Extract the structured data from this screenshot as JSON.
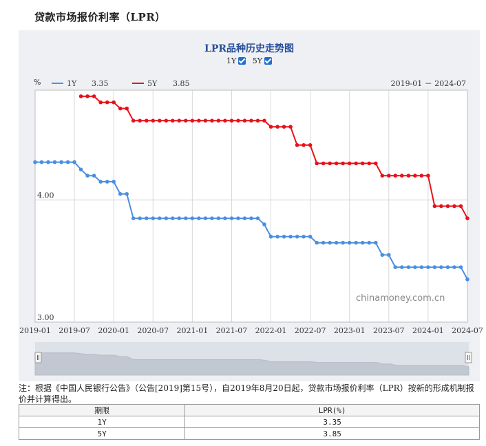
{
  "page_title": "贷款市场报价利率（LPR）",
  "toggles": [
    {
      "label": "1Y",
      "checked": true
    },
    {
      "label": "5Y",
      "checked": true
    }
  ],
  "note": "注：根据《中国人民银行公告》（公告[2019]第15号），自2019年8月20日起，贷款市场报价利率（LPR）按新的形成机制报价并计算得出。",
  "table": {
    "headers": [
      "期限",
      "LPR(%)"
    ],
    "rows": [
      [
        "1Y",
        "3.35"
      ],
      [
        "5Y",
        "3.85"
      ]
    ]
  },
  "colors": {
    "series_1y": "#4a8fe0",
    "series_5y": "#e8101a",
    "title": "#2a4f9a",
    "panel_bg": "#eef0f4"
  },
  "watermark": "chinamoney.com.cn",
  "chart_data": {
    "type": "line",
    "title": "LPR品种历史走势图",
    "unit_label": "%",
    "date_range": "2019-01 － 2024-07",
    "x_tick_labels": [
      "2019-01",
      "2019-07",
      "2020-01",
      "2020-07",
      "2021-01",
      "2021-07",
      "2022-01",
      "2022-07",
      "2023-01",
      "2023-07",
      "2024-01",
      "2024-07"
    ],
    "y_tick_labels": [
      "3.00",
      "4.00"
    ],
    "ylim": [
      3.0,
      4.9
    ],
    "grid": true,
    "x": [
      "2019-01",
      "2019-02",
      "2019-03",
      "2019-04",
      "2019-05",
      "2019-06",
      "2019-07",
      "2019-08",
      "2019-09",
      "2019-10",
      "2019-11",
      "2019-12",
      "2020-01",
      "2020-02",
      "2020-03",
      "2020-04",
      "2020-05",
      "2020-06",
      "2020-07",
      "2020-08",
      "2020-09",
      "2020-10",
      "2020-11",
      "2020-12",
      "2021-01",
      "2021-02",
      "2021-03",
      "2021-04",
      "2021-05",
      "2021-06",
      "2021-07",
      "2021-08",
      "2021-09",
      "2021-10",
      "2021-11",
      "2021-12",
      "2022-01",
      "2022-02",
      "2022-03",
      "2022-04",
      "2022-05",
      "2022-06",
      "2022-07",
      "2022-08",
      "2022-09",
      "2022-10",
      "2022-11",
      "2022-12",
      "2023-01",
      "2023-02",
      "2023-03",
      "2023-04",
      "2023-05",
      "2023-06",
      "2023-07",
      "2023-08",
      "2023-09",
      "2023-10",
      "2023-11",
      "2023-12",
      "2024-01",
      "2024-02",
      "2024-03",
      "2024-04",
      "2024-05",
      "2024-06",
      "2024-07"
    ],
    "series": [
      {
        "name": "1Y",
        "latest": "3.35",
        "color": "#4a8fe0",
        "values": [
          4.31,
          4.31,
          4.31,
          4.31,
          4.31,
          4.31,
          4.31,
          4.25,
          4.2,
          4.2,
          4.15,
          4.15,
          4.15,
          4.05,
          4.05,
          3.85,
          3.85,
          3.85,
          3.85,
          3.85,
          3.85,
          3.85,
          3.85,
          3.85,
          3.85,
          3.85,
          3.85,
          3.85,
          3.85,
          3.85,
          3.85,
          3.85,
          3.85,
          3.85,
          3.85,
          3.8,
          3.7,
          3.7,
          3.7,
          3.7,
          3.7,
          3.7,
          3.7,
          3.65,
          3.65,
          3.65,
          3.65,
          3.65,
          3.65,
          3.65,
          3.65,
          3.65,
          3.65,
          3.55,
          3.55,
          3.45,
          3.45,
          3.45,
          3.45,
          3.45,
          3.45,
          3.45,
          3.45,
          3.45,
          3.45,
          3.45,
          3.35
        ]
      },
      {
        "name": "5Y",
        "latest": "3.85",
        "color": "#e8101a",
        "values": [
          null,
          null,
          null,
          null,
          null,
          null,
          null,
          4.85,
          4.85,
          4.85,
          4.8,
          4.8,
          4.8,
          4.75,
          4.75,
          4.65,
          4.65,
          4.65,
          4.65,
          4.65,
          4.65,
          4.65,
          4.65,
          4.65,
          4.65,
          4.65,
          4.65,
          4.65,
          4.65,
          4.65,
          4.65,
          4.65,
          4.65,
          4.65,
          4.65,
          4.65,
          4.6,
          4.6,
          4.6,
          4.6,
          4.45,
          4.45,
          4.45,
          4.3,
          4.3,
          4.3,
          4.3,
          4.3,
          4.3,
          4.3,
          4.3,
          4.3,
          4.3,
          4.2,
          4.2,
          4.2,
          4.2,
          4.2,
          4.2,
          4.2,
          4.2,
          3.95,
          3.95,
          3.95,
          3.95,
          3.95,
          3.85
        ]
      }
    ]
  }
}
